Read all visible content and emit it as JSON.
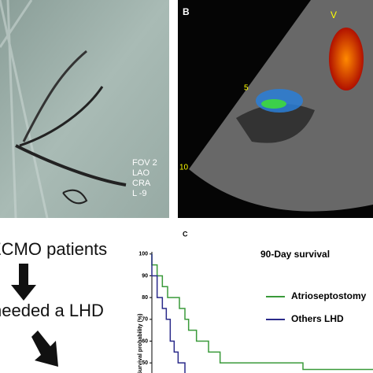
{
  "panel_a": {
    "overlay": [
      "FOV 2",
      "LAO",
      "CRA",
      "L -9"
    ]
  },
  "panel_b": {
    "label": "B",
    "marker": "V",
    "depth_labels": [
      "5",
      "10"
    ]
  },
  "flow": {
    "steps": [
      "ECMO patients",
      "needed a LHD"
    ]
  },
  "chart_data": {
    "type": "line",
    "panel_label": "C",
    "title": "90-Day survival",
    "ylabel": "Survival probability (%)",
    "xlim": [
      0,
      90
    ],
    "ylim": [
      45,
      101
    ],
    "yticks": [
      100,
      90,
      80,
      70,
      60,
      50
    ],
    "series": [
      {
        "name": "Atrioseptostomy",
        "color": "#3a9a3a",
        "x": [
          0,
          2,
          4,
          6,
          10.5,
          12.6,
          14,
          17,
          21.6,
          26,
          57.6,
          71
        ],
        "values": [
          100,
          95,
          90,
          85,
          80,
          75,
          70,
          65,
          60,
          55,
          50,
          47
        ]
      },
      {
        "name": "Others LHD",
        "color": "#2a2a8a",
        "x": [
          0,
          2,
          4,
          5.5,
          7,
          8.5,
          10,
          12.6,
          14.5
        ],
        "values": [
          100,
          90,
          80,
          75,
          70,
          60,
          55,
          50,
          45
        ]
      }
    ]
  }
}
